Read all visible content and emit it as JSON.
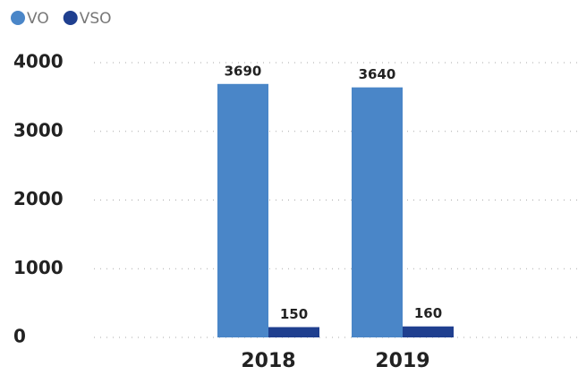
{
  "chart_data": {
    "type": "bar",
    "categories": [
      "2018",
      "2019"
    ],
    "series": [
      {
        "name": "VO",
        "color": "#4a86c8",
        "values": [
          3690,
          3640
        ]
      },
      {
        "name": "VSO",
        "color": "#1f3f8f",
        "values": [
          150,
          160
        ]
      }
    ],
    "ylim": [
      0,
      4000
    ],
    "yticks": [
      0,
      1000,
      2000,
      3000,
      4000
    ],
    "grid": true,
    "legend": "top-left"
  }
}
